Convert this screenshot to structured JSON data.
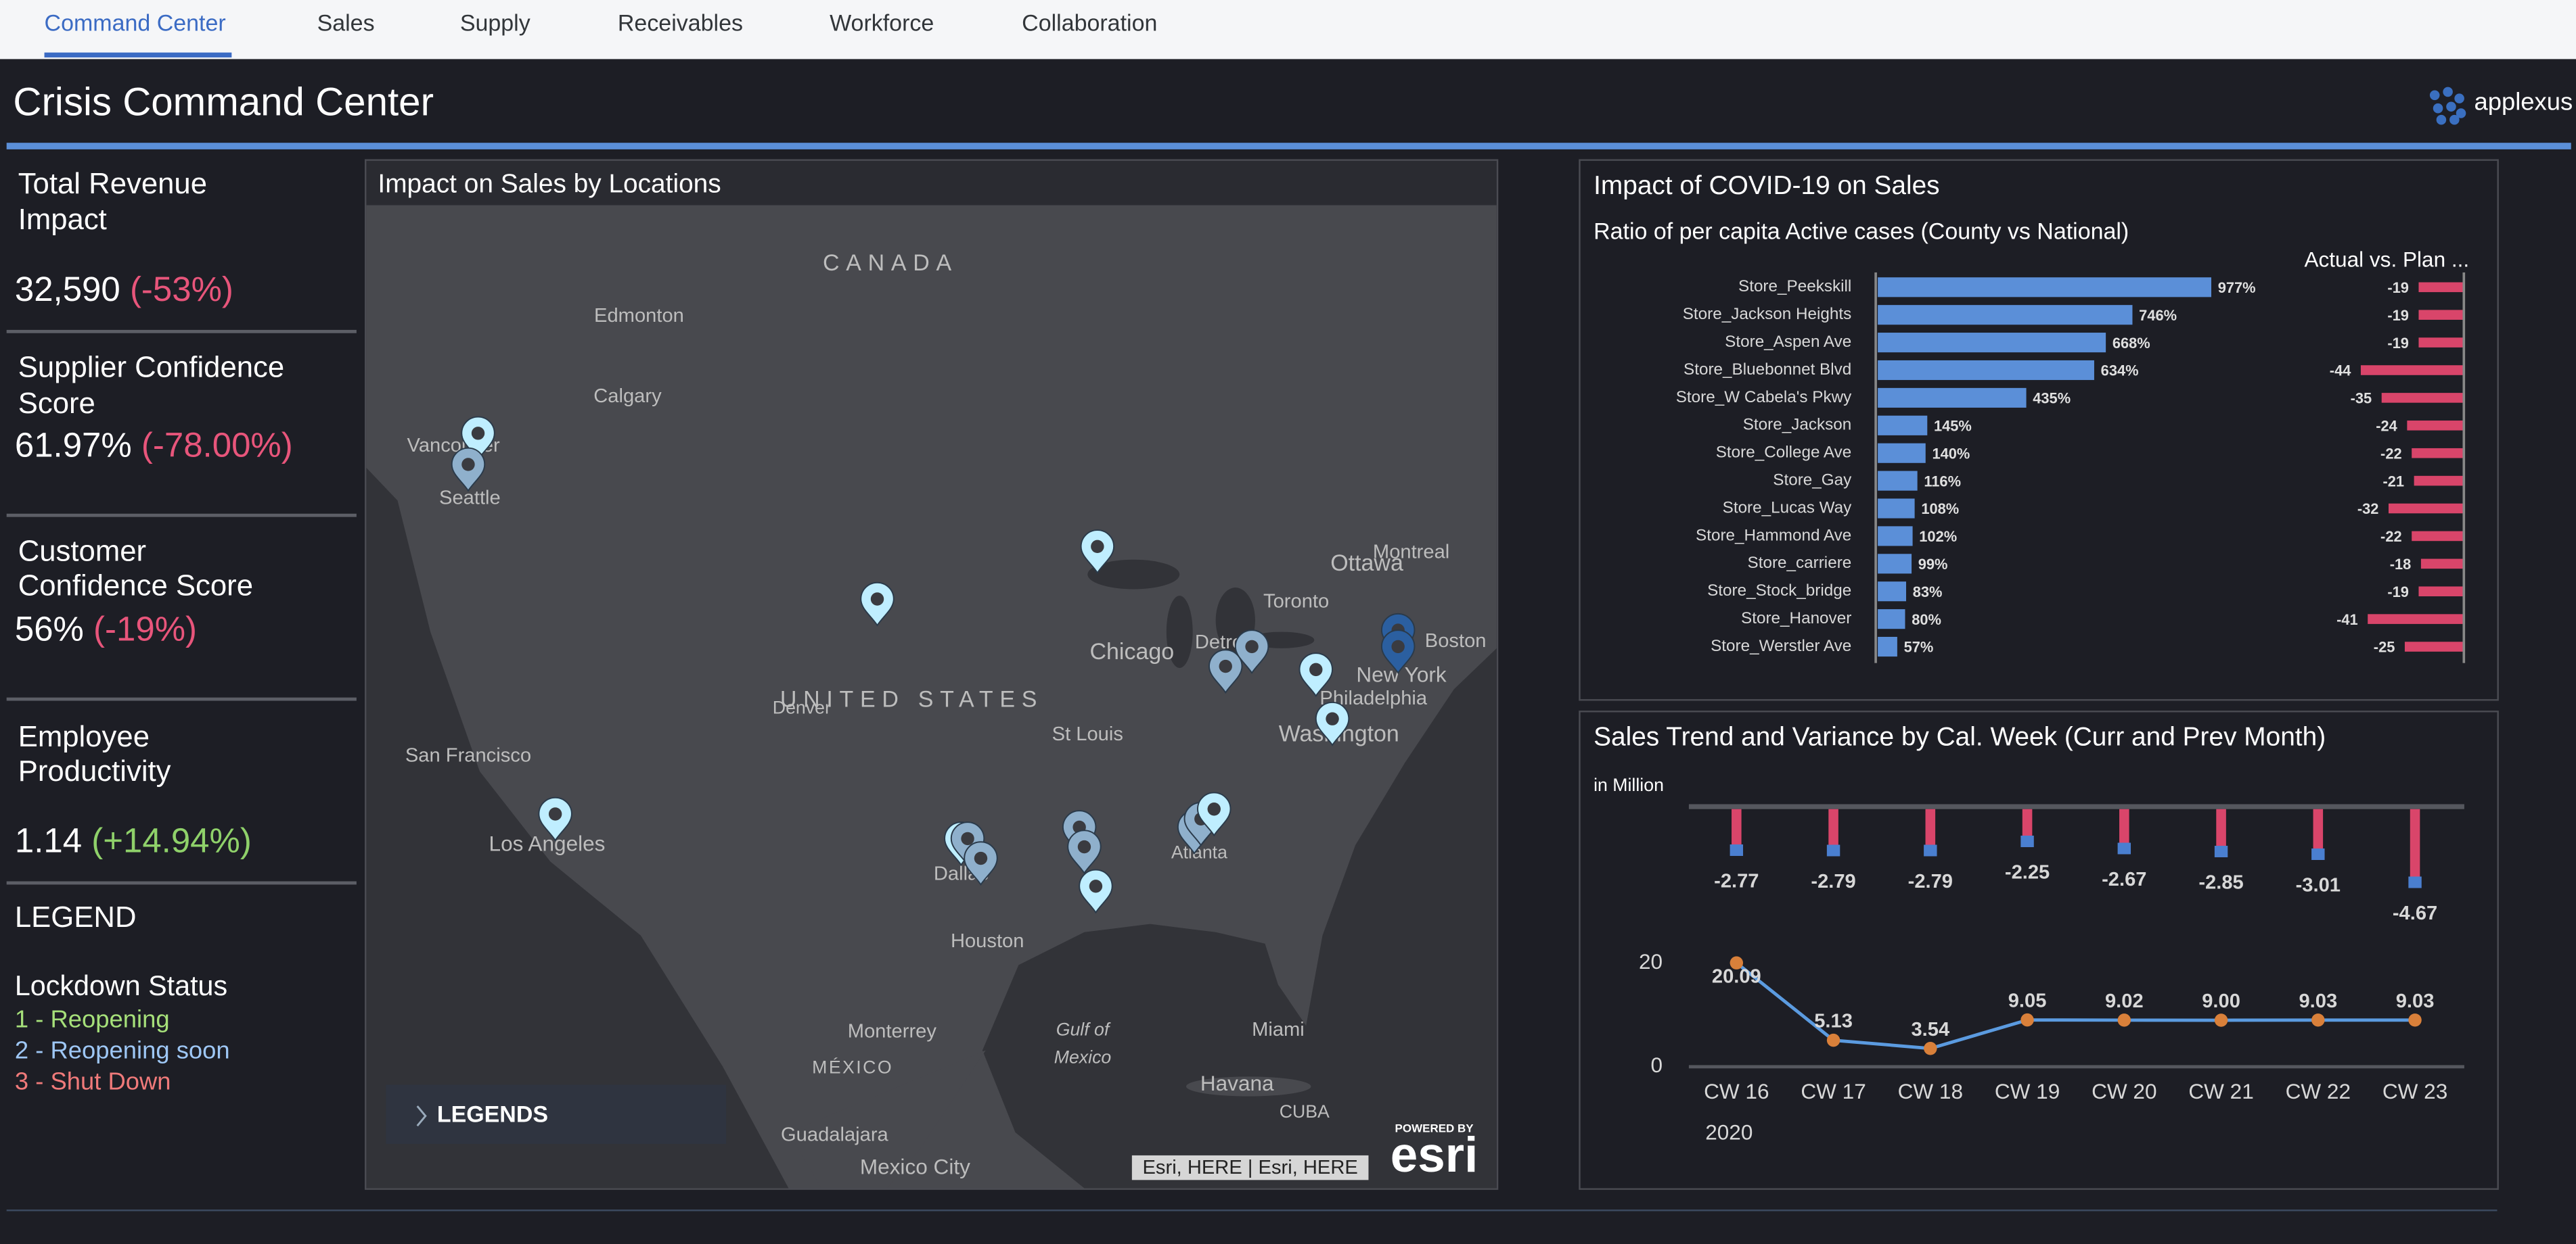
{
  "nav": {
    "tabs": [
      "Command Center",
      "Sales",
      "Supply",
      "Receivables",
      "Workforce",
      "Collaboration"
    ]
  },
  "header": {
    "title": "Crisis Command Center",
    "logo": "applexus"
  },
  "kpis": [
    {
      "title_lines": [
        "Total Revenue",
        "Impact"
      ],
      "value": "32,590",
      "change": "(-53%)",
      "color": "#e8557b"
    },
    {
      "title_lines": [
        "Supplier Confidence",
        "Score"
      ],
      "value": "61.97%",
      "change": "(-78.00%)",
      "color": "#e8557b"
    },
    {
      "title_lines": [
        "Customer",
        "Confidence Score"
      ],
      "value": "56%",
      "change": "(-19%)",
      "color": "#e8557b"
    },
    {
      "title_lines": [
        "Employee",
        "Productivity"
      ],
      "value": "1.14",
      "change": "(+14.94%)",
      "color": "#8fd16a"
    }
  ],
  "legend": {
    "title": "LEGEND",
    "subtitle": "Lockdown Status",
    "items": [
      {
        "label": "1 - Reopening",
        "color": "#a6e07a"
      },
      {
        "label": "2 - Reopening soon",
        "color": "#9ec7f5"
      },
      {
        "label": "3 - Shut Down",
        "color": "#f07a7a"
      }
    ]
  },
  "map": {
    "title": "Impact on Sales by Locations",
    "labels": [
      "CANADA",
      "Edmonton",
      "Calgary",
      "Vancouver",
      "Seattle",
      "San Francisco",
      "Los Angeles",
      "Denver",
      "UNITED STATES",
      "St Louis",
      "Chicago",
      "Detroit",
      "Toronto",
      "Ottawa",
      "Montreal",
      "Boston",
      "New York",
      "Philadelphia",
      "Washington",
      "Dallas",
      "Houston",
      "Atlanta",
      "Miami",
      "Havana",
      "CUBA",
      "Gulf of",
      "Mexico",
      "Monterrey",
      "MÉXICO",
      "Guadalajara",
      "Mexico City"
    ],
    "button": "LEGENDS",
    "attribution": "Esri, HERE | Esri, HERE",
    "powered": "POWERED BY",
    "brand": "esri"
  },
  "covid": {
    "title": "Impact of COVID-19 on Sales",
    "subtitle": "Ratio of per capita Active cases (County vs National)",
    "right_title": "Actual vs. Plan ...",
    "stores": [
      "Store_Peekskill",
      "Store_Jackson Heights",
      "Store_Aspen Ave",
      "Store_Bluebonnet Blvd",
      "Store_W Cabela's Pkwy",
      "Store_Jackson",
      "Store_College Ave",
      "Store_Gay",
      "Store_Lucas Way",
      "Store_Hammond Ave",
      "Store_carriere",
      "Store_Stock_bridge",
      "Store_Hanover",
      "Store_Werstler Ave"
    ],
    "ratio": [
      977,
      746,
      668,
      634,
      435,
      145,
      140,
      116,
      108,
      102,
      99,
      83,
      80,
      57
    ],
    "ratio_labels": [
      "977%",
      "746%",
      "668%",
      "634%",
      "435%",
      "145%",
      "140%",
      "116%",
      "108%",
      "102%",
      "99%",
      "83%",
      "80%",
      "57%"
    ],
    "variance": [
      -19,
      -19,
      -19,
      -44,
      -35,
      -24,
      -22,
      -21,
      -32,
      -22,
      -18,
      -19,
      -41,
      -25
    ]
  },
  "trend": {
    "title": "Sales Trend and Variance by Cal. Week (Curr and Prev Month)",
    "unit": "in Million",
    "categories": [
      "CW 16",
      "CW 17",
      "CW 18",
      "CW 19",
      "CW 20",
      "CW 21",
      "CW 22",
      "CW 23"
    ],
    "year": "2020",
    "variance": [
      -2.77,
      -2.79,
      -2.79,
      -2.25,
      -2.67,
      -2.85,
      -3.01,
      -4.67
    ],
    "values": [
      20.09,
      5.13,
      3.54,
      9.05,
      9.02,
      9.0,
      9.03,
      9.03
    ],
    "value_labels": [
      "20.09",
      "5.13",
      "3.54",
      "9.05",
      "9.02",
      "9.00",
      "9.03",
      "9.03"
    ],
    "ylim": [
      0,
      20
    ],
    "yticks": [
      0,
      20
    ],
    "bar_color": "#d9456a",
    "line_color": "#5b9be0",
    "dot_color": "#d9803a"
  }
}
